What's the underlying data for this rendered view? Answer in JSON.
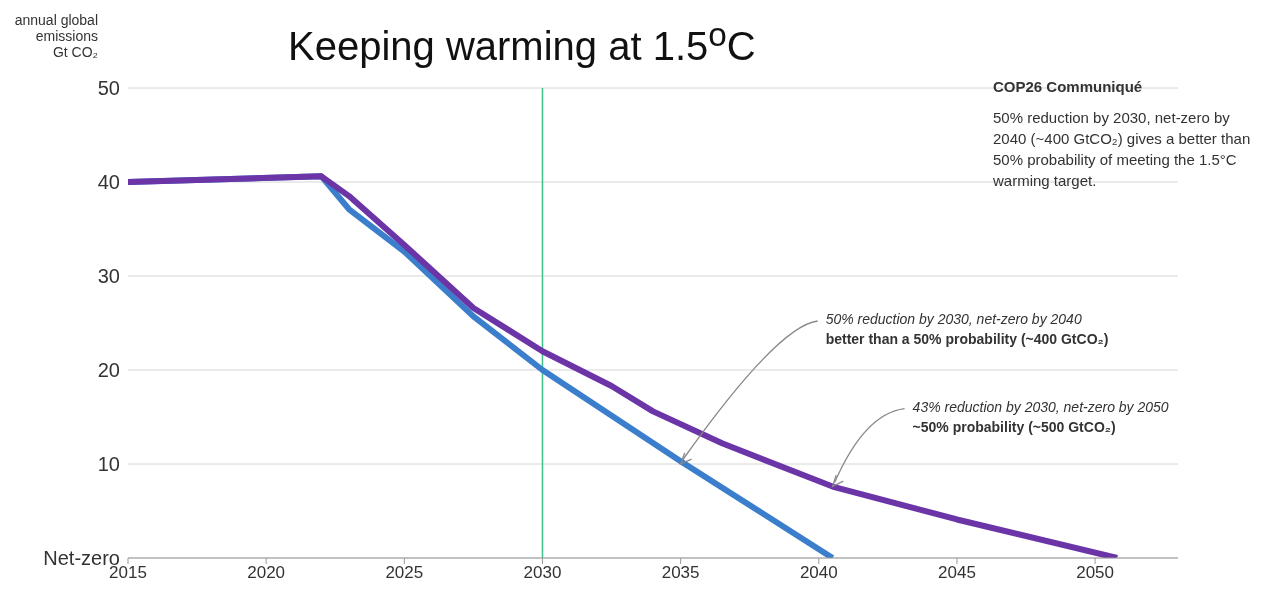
{
  "chart_data": {
    "type": "line",
    "title": "Keeping warming at 1.5$^{o}$C",
    "ylabel": "annual global\nemissions\nGt CO₂",
    "series": [
      {
        "color": "#3b7fcc",
        "x": [
          2015,
          2022,
          2023,
          2025,
          2027.5,
          2030,
          2035,
          2040.5
        ],
        "values": [
          40,
          40.6,
          37.1,
          32.6,
          25.7,
          20,
          10.3,
          0
        ]
      },
      {
        "color": "#6b35a8",
        "x": [
          2015,
          2022,
          2023,
          2025,
          2027.5,
          2030,
          2032.5,
          2034,
          2036.5,
          2040.5,
          2045,
          2050.8
        ],
        "values": [
          40,
          40.6,
          38.5,
          33.3,
          26.6,
          22,
          18.3,
          15.6,
          12.2,
          7.6,
          4.1,
          0
        ]
      }
    ],
    "xlim": [
      2015,
      2053
    ],
    "xticks": [
      2015,
      2020,
      2025,
      2030,
      2035,
      2040,
      2045,
      2050
    ],
    "ylim": [
      0,
      50
    ],
    "yticks": [
      {
        "value": 0,
        "label": "Net-zero"
      },
      10,
      20,
      30,
      40,
      50
    ],
    "grid": "y",
    "line_style": "solid",
    "marker": "none",
    "ref_lines": [
      {
        "axis": "x",
        "value": 2030,
        "color": "#3fbf8a"
      }
    ],
    "annotations": [
      "COP26 Communiqué",
      "50% reduction by 2030, net-zero by 2040 (~400 GtCO₂) gives a better than 50% probability of meeting the 1.5°C warming target.",
      {
        "text": "50% reduction by 2030, net-zero by 2040\nbetter than a 50% probability (~400 GtCO₂)",
        "x": 2035,
        "y": 10
      },
      {
        "text": "43% reduction by 2030, net-zero by 2050\n~50% probability (~500 GtCO₂)",
        "x": 2040.5,
        "y": 7.6
      }
    ]
  }
}
